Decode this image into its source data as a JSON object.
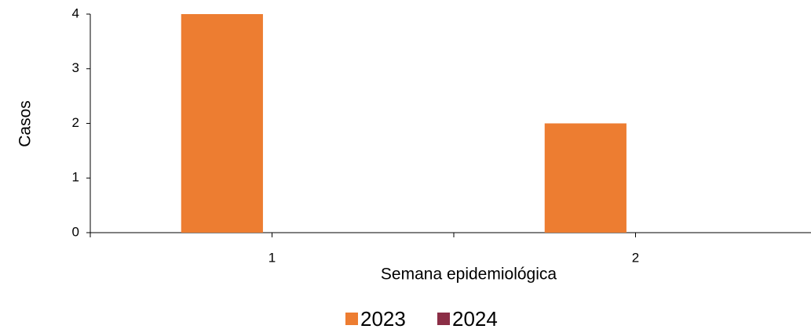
{
  "chart_data": {
    "type": "bar",
    "categories": [
      "1",
      "2"
    ],
    "series": [
      {
        "name": "2023",
        "color": "#ed7d31",
        "values": [
          4,
          2
        ]
      },
      {
        "name": "2024",
        "color": "#8b2e46",
        "values": [
          0,
          0
        ]
      }
    ],
    "xlabel": "Semana epidemiológica",
    "ylabel": "Casos",
    "ylim": [
      0,
      4
    ],
    "yticks": [
      0,
      1,
      2,
      3,
      4
    ],
    "grid": false,
    "legend": "bottom"
  }
}
